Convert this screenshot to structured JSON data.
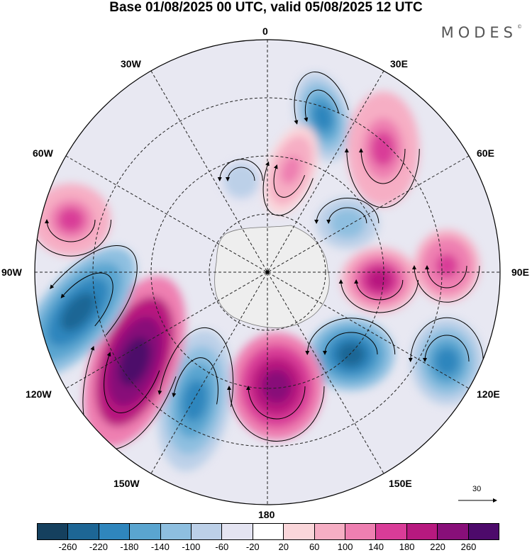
{
  "title": "Base 01/08/2025 00 UTC, valid 05/08/2025 12 UTC",
  "brand": "MODES",
  "brand_mark": "©",
  "lon_labels": {
    "top": "0",
    "right": "90E",
    "bottom": "180",
    "left": "90W",
    "nw1": "30W",
    "nw2": "60W",
    "ne1": "30E",
    "ne2": "60E",
    "sw1": "120W",
    "sw2": "150W",
    "se1": "120E",
    "se2": "150E"
  },
  "ref_vector": "30",
  "colorbar": {
    "colors": [
      "#15405e",
      "#1d6695",
      "#2f86bd",
      "#5aa5d0",
      "#8ebfe0",
      "#bcd0e8",
      "#e4e4f2",
      "#ffffff",
      "#fad6da",
      "#f6aec4",
      "#ee7fb1",
      "#d93c98",
      "#b7197f",
      "#880f79",
      "#4d0a6b"
    ],
    "ticks": [
      "-260",
      "-220",
      "-180",
      "-140",
      "-100",
      "-60",
      "-20",
      "20",
      "60",
      "100",
      "140",
      "180",
      "220",
      "260"
    ]
  },
  "anomaly_centers": [
    {
      "sign": "negative",
      "value": -200
    },
    {
      "sign": "positive",
      "value": 120
    },
    {
      "sign": "positive",
      "value": 150
    },
    {
      "sign": "negative",
      "value": -140
    },
    {
      "sign": "positive",
      "value": 200
    },
    {
      "sign": "positive",
      "value": 170
    },
    {
      "sign": "negative",
      "value": -230
    },
    {
      "sign": "negative",
      "value": -200
    },
    {
      "sign": "positive",
      "value": 230
    },
    {
      "sign": "negative",
      "value": -190
    },
    {
      "sign": "positive",
      "value": 290
    },
    {
      "sign": "negative",
      "value": -230
    },
    {
      "sign": "positive",
      "value": 140
    },
    {
      "sign": "negative",
      "value": -100
    }
  ]
}
